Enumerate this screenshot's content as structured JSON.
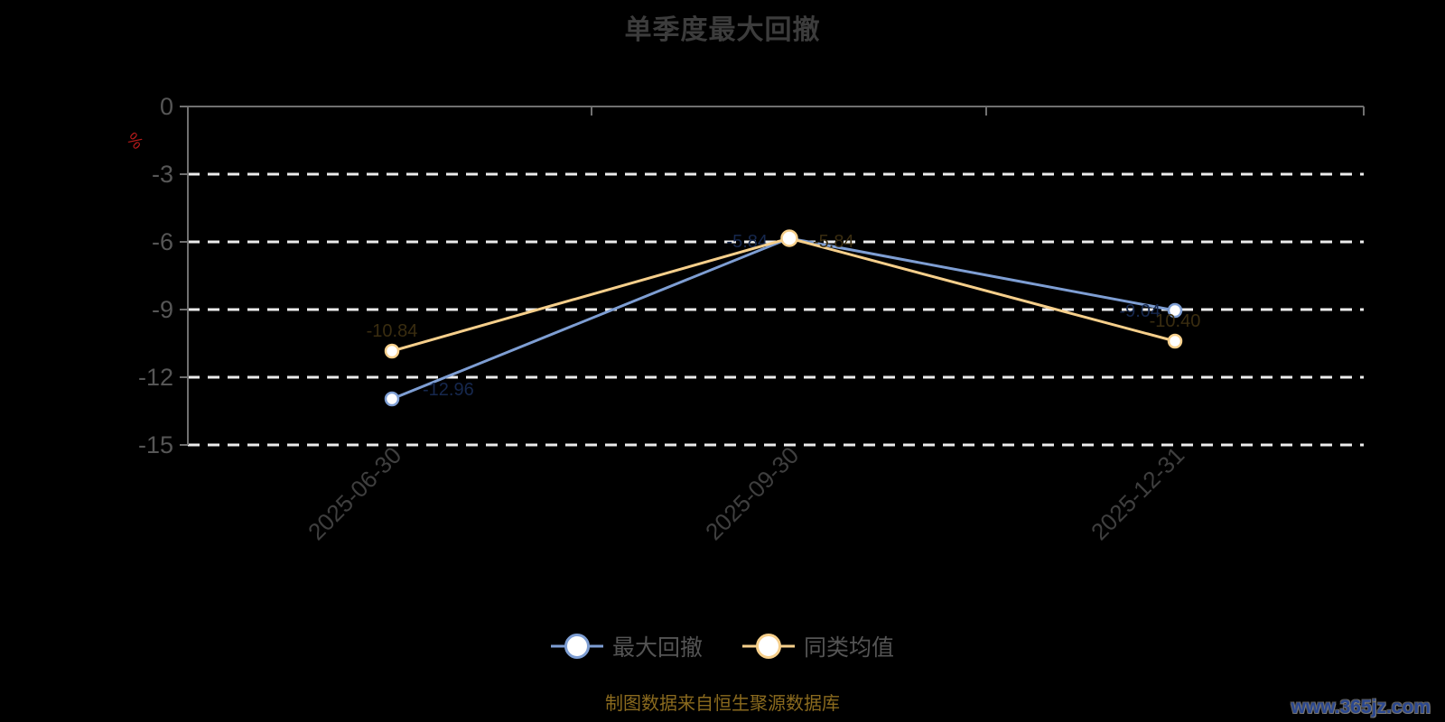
{
  "title": "单季度最大回撤",
  "footer": {
    "source_note": "制图数据来自恒生聚源数据库",
    "watermark": "www.365jz.com"
  },
  "chart_data": {
    "type": "line",
    "title": "单季度最大回撤",
    "categories": [
      "2025-06-30",
      "2025-09-30",
      "2025-12-31"
    ],
    "series": [
      {
        "name": "最大回撤",
        "color": "#7E9ED3",
        "values": [
          -12.96,
          -5.84,
          -9.04
        ],
        "labels": [
          "-12.96",
          "-5.84",
          "-9.04"
        ],
        "label_color": "#16284e"
      },
      {
        "name": "同类均值",
        "color": "#F6CF8B",
        "values": [
          -10.84,
          -5.84,
          -10.4
        ],
        "labels": [
          "-10.84",
          "-5.84",
          "-10.40"
        ],
        "label_color": "#3a2d10"
      }
    ],
    "ylabel": "%",
    "yticks": [
      0,
      -3,
      -6,
      -9,
      -12,
      -15
    ],
    "ylim": [
      -15,
      0
    ],
    "grid": "horizontal-dashed-white",
    "legend_position": "bottom",
    "marker": "circle-white-fill",
    "colors": {
      "background": "#000000",
      "axis_line": "#707070",
      "grid_line": "#ececec",
      "ytick_text": "#565656",
      "xtick_text": "#3f3f3f",
      "title_text": "#3c3c3c",
      "unit_text": "#b51a1a"
    }
  }
}
